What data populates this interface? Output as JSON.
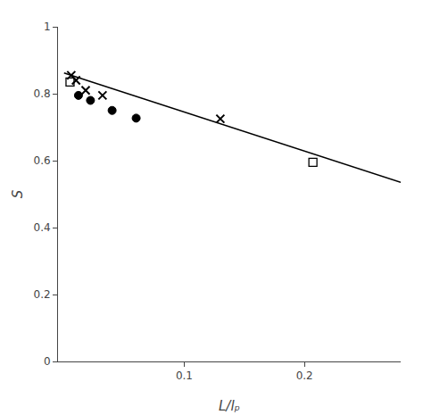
{
  "chart_data": {
    "type": "scatter",
    "title": "",
    "xlabel": "L/lₚ",
    "ylabel": "S",
    "xlim": [
      -0.005,
      0.28
    ],
    "ylim": [
      0.0,
      1.0
    ],
    "xticks": [
      0.1,
      0.2
    ],
    "yticks": [
      0.0,
      0.2,
      0.4,
      0.6,
      0.8,
      1.0
    ],
    "grid": false,
    "series": [
      {
        "type": "line",
        "x": [
          0.0,
          0.28
        ],
        "values": [
          0.862,
          0.535
        ],
        "color": "#000000",
        "line_style": "solid"
      },
      {
        "type": "scatter",
        "marker": "square-open",
        "x": [
          0.005,
          0.207
        ],
        "values": [
          0.835,
          0.595
        ],
        "color": "#000000"
      },
      {
        "type": "scatter",
        "marker": "x",
        "x": [
          0.006,
          0.01,
          0.018,
          0.032,
          0.13
        ],
        "values": [
          0.855,
          0.84,
          0.81,
          0.795,
          0.725
        ],
        "color": "#000000"
      },
      {
        "type": "scatter",
        "marker": "circle",
        "x": [
          0.012,
          0.022,
          0.04,
          0.06
        ],
        "values": [
          0.795,
          0.78,
          0.75,
          0.727
        ],
        "color": "#000000"
      }
    ]
  }
}
